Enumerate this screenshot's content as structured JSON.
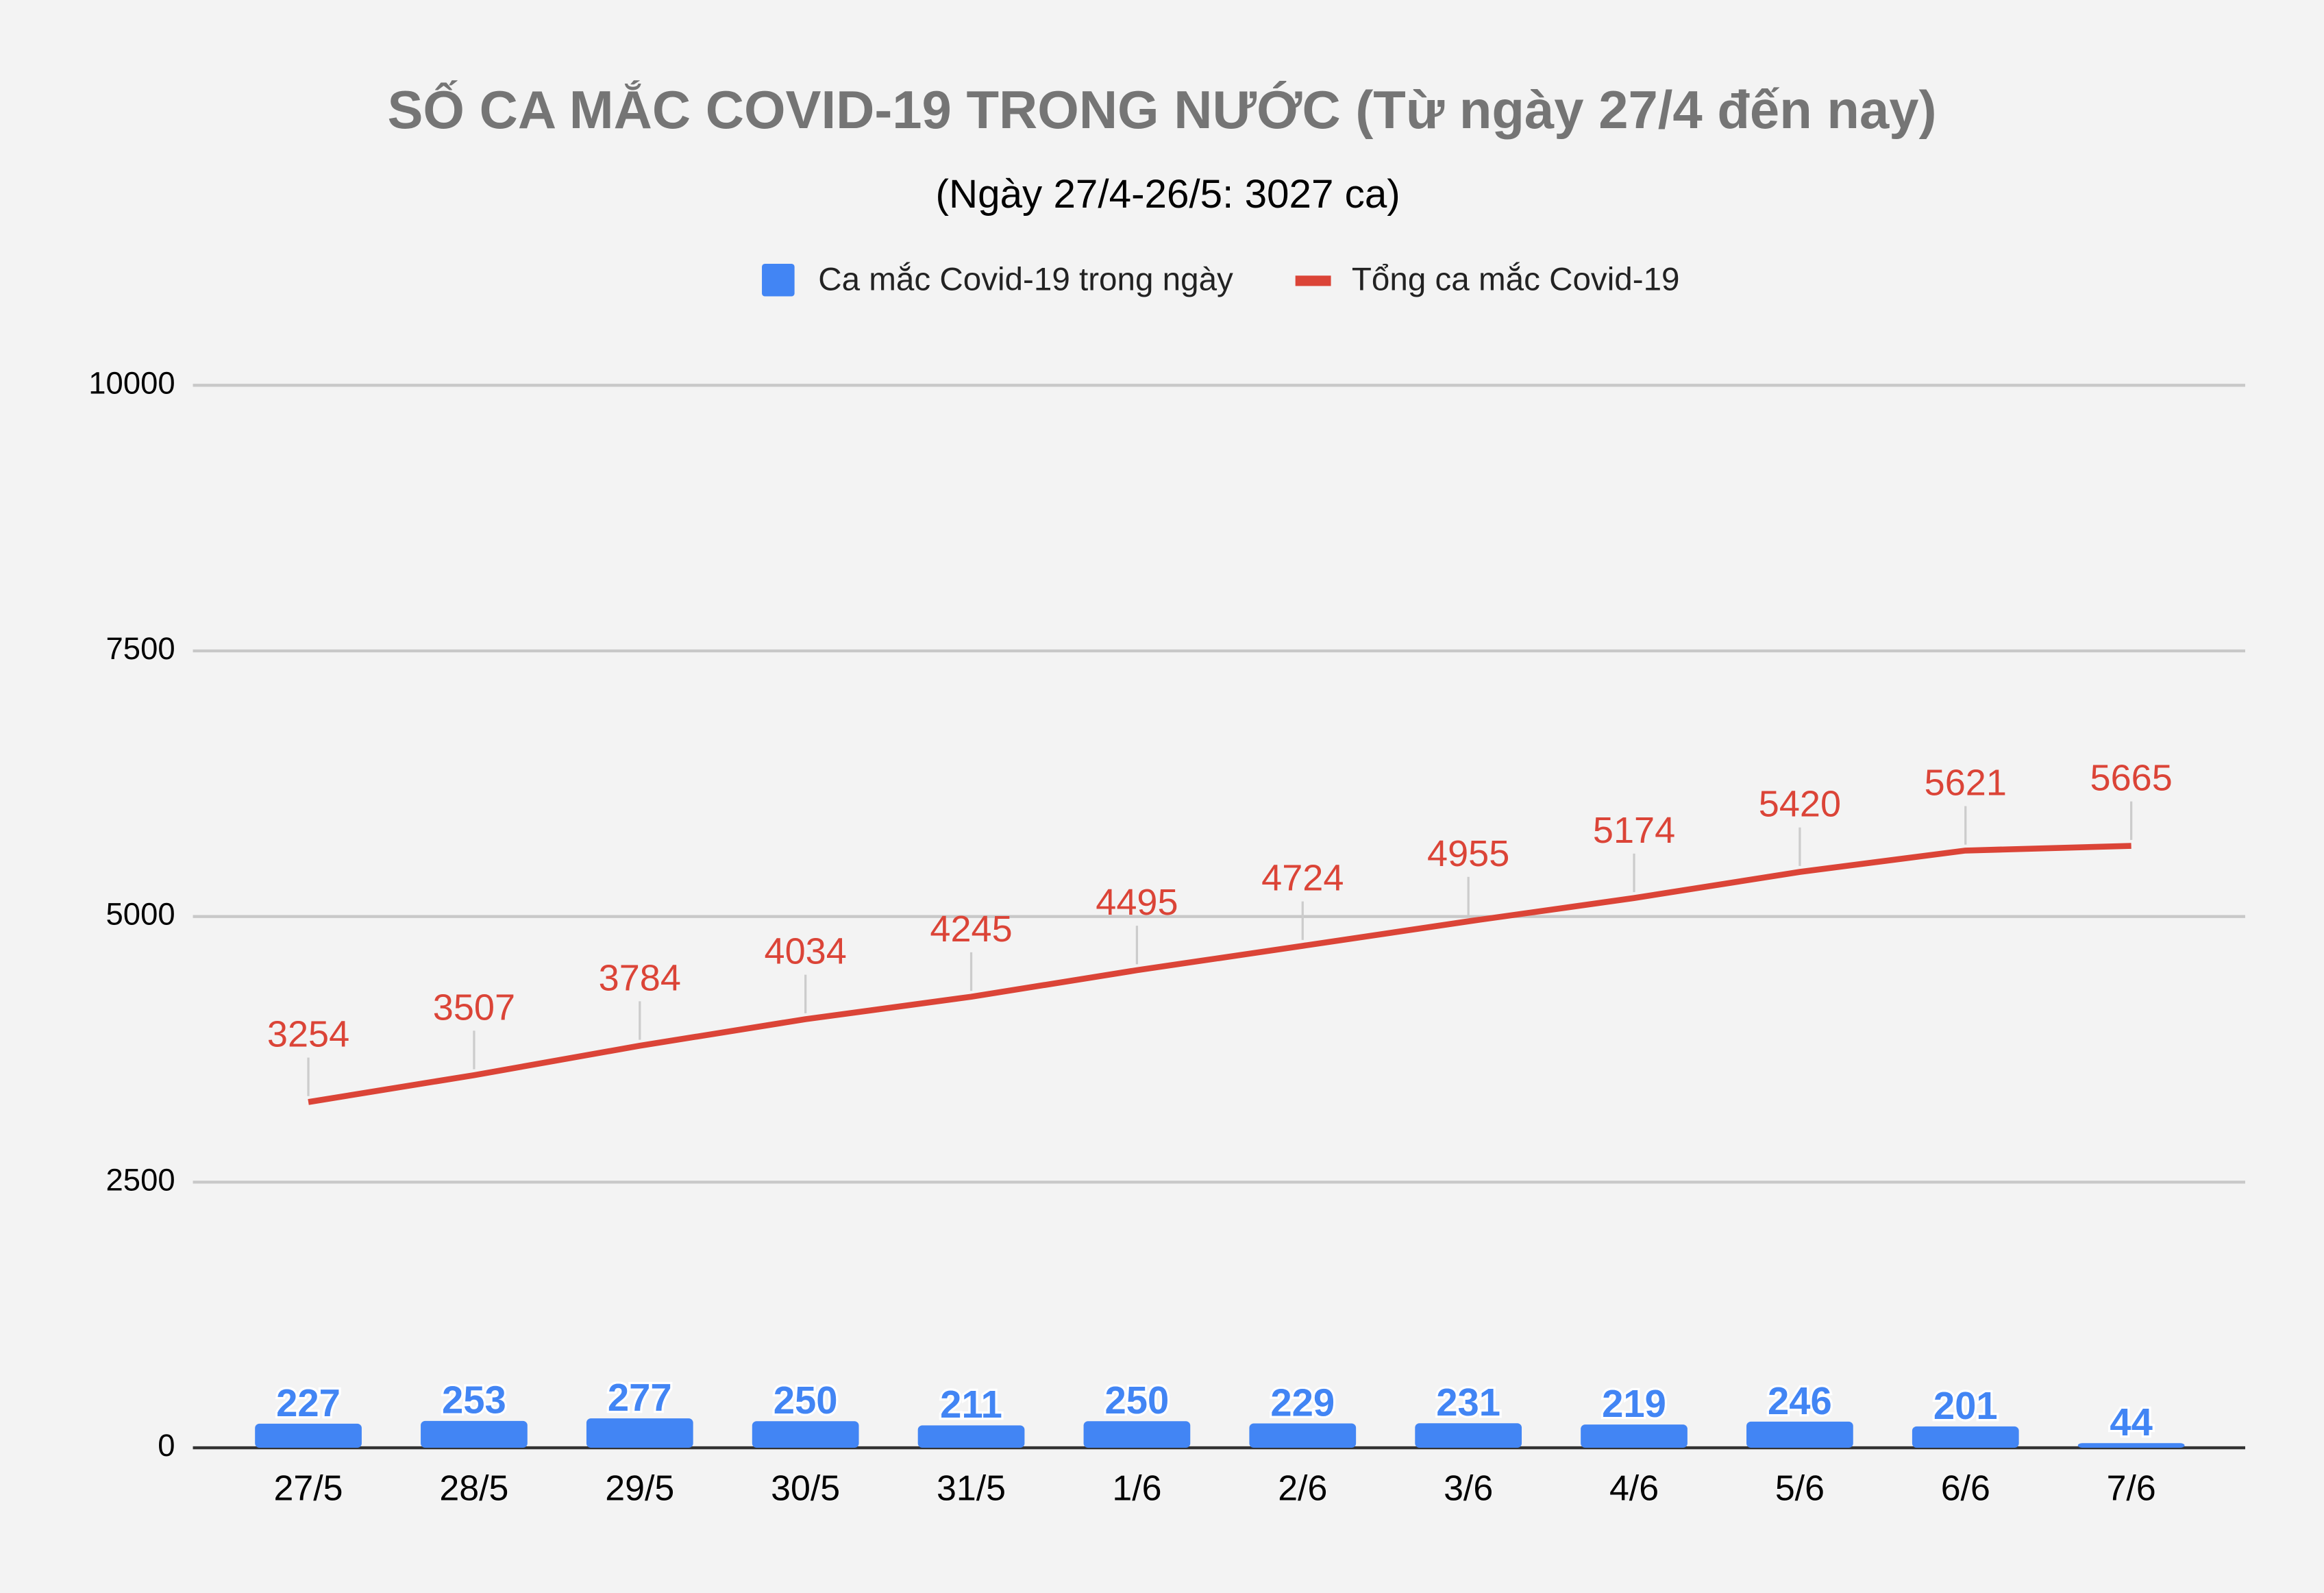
{
  "chart_data": {
    "type": "combo",
    "title": "SỐ CA MẮC COVID-19 TRONG NƯỚC (Từ ngày 27/4 đến nay)",
    "subtitle": "(Ngày 27/4-26/5: 3027 ca)",
    "categories": [
      "27/5",
      "28/5",
      "29/5",
      "30/5",
      "31/5",
      "1/6",
      "2/6",
      "3/6",
      "4/6",
      "5/6",
      "6/6",
      "7/6"
    ],
    "series": [
      {
        "name": "Ca mắc Covid-19 trong ngày",
        "type": "bar",
        "color": "#4285f4",
        "values": [
          227,
          253,
          277,
          250,
          211,
          250,
          229,
          231,
          219,
          246,
          201,
          44
        ]
      },
      {
        "name": "Tổng ca mắc Covid-19",
        "type": "line",
        "color": "#db4437",
        "values": [
          3254,
          3507,
          3784,
          4034,
          4245,
          4495,
          4724,
          4955,
          5174,
          5420,
          5621,
          5665
        ]
      }
    ],
    "ylim": [
      0,
      10000
    ],
    "yticks": [
      0,
      2500,
      5000,
      7500,
      10000
    ],
    "grid": true,
    "legend": "top"
  }
}
